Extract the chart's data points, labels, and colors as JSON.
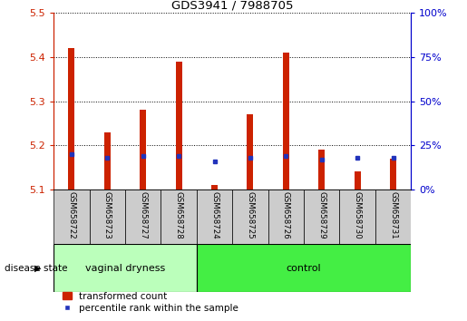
{
  "title": "GDS3941 / 7988705",
  "samples": [
    "GSM658722",
    "GSM658723",
    "GSM658727",
    "GSM658728",
    "GSM658724",
    "GSM658725",
    "GSM658726",
    "GSM658729",
    "GSM658730",
    "GSM658731"
  ],
  "red_values": [
    5.42,
    5.23,
    5.28,
    5.39,
    5.11,
    5.27,
    5.41,
    5.19,
    5.14,
    5.17
  ],
  "blue_pct": [
    20,
    18,
    19,
    19,
    16,
    18,
    19,
    17,
    18,
    18
  ],
  "ymin": 5.1,
  "ymax": 5.5,
  "yticks": [
    5.1,
    5.2,
    5.3,
    5.4,
    5.5
  ],
  "right_yticks": [
    0,
    25,
    50,
    75,
    100
  ],
  "group1_label": "vaginal dryness",
  "group2_label": "control",
  "group1_count": 4,
  "group2_count": 6,
  "disease_state_label": "disease state",
  "legend1": "transformed count",
  "legend2": "percentile rank within the sample",
  "bar_color": "#cc2200",
  "blue_color": "#2233bb",
  "group1_bg": "#bbffbb",
  "group2_bg": "#44ee44",
  "tick_bg": "#cccccc",
  "right_axis_color": "#0000cc",
  "left_axis_color": "#cc2200",
  "bar_width": 0.18
}
